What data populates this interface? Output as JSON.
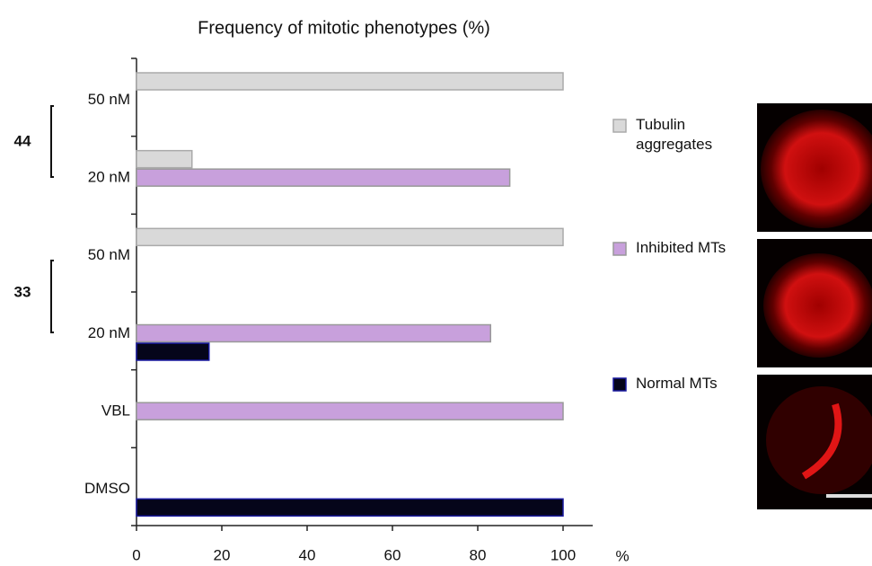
{
  "chart_data": {
    "type": "bar",
    "orientation": "horizontal",
    "title": "Frequency of mitotic phenotypes (%)",
    "x_label": "%",
    "categories": [
      "50 nM",
      "20 nM",
      "50 nM",
      "20 nM",
      "VBL",
      "DMSO"
    ],
    "groups": [
      "44",
      "33"
    ],
    "series": [
      {
        "name": "Tubulin aggregates",
        "color": "#d9d9d9",
        "values": [
          100,
          13,
          100,
          0,
          0,
          0
        ]
      },
      {
        "name": "Inhibited MTs",
        "color": "#c8a0dc",
        "values": [
          0,
          87.5,
          0,
          83,
          100,
          0
        ]
      },
      {
        "name": "Normal MTs",
        "color": "#05051a",
        "values": [
          0,
          0,
          0,
          17,
          0,
          100
        ]
      }
    ],
    "xlim": [
      0,
      100
    ],
    "xticks": [
      0,
      20,
      40,
      60,
      80,
      100
    ],
    "grid": false
  }
}
